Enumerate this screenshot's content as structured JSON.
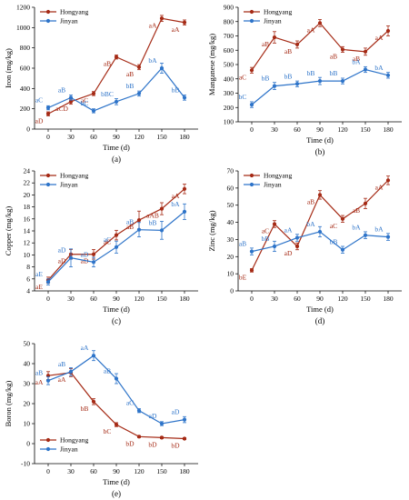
{
  "colors": {
    "Hongyang": "#a52a15",
    "Jinyan": "#2e74c9"
  },
  "chart_data": [
    {
      "panel_label": "(a)",
      "type": "line",
      "x": [
        0,
        30,
        60,
        90,
        120,
        150,
        180
      ],
      "xlabel": "Time (d)",
      "ylabel": "Iron (mg/kg)",
      "ylim": [
        0,
        1200
      ],
      "yticks": [
        0,
        200,
        400,
        600,
        800,
        1000,
        1200
      ],
      "legend": "top-left",
      "series": [
        {
          "name": "Hongyang",
          "values": [
            150,
            270,
            350,
            710,
            610,
            1090,
            1050
          ],
          "errors": [
            20,
            25,
            20,
            20,
            25,
            30,
            25
          ],
          "labels": [
            "aD",
            "aCD",
            "aC",
            "aB",
            "aB",
            "aA",
            "aA"
          ]
        },
        {
          "name": "Jinyan",
          "values": [
            210,
            310,
            180,
            270,
            350,
            600,
            310
          ],
          "errors": [
            20,
            25,
            20,
            30,
            25,
            50,
            25
          ],
          "labels": [
            "aC",
            "aB",
            "bC",
            "bBC",
            "bB",
            "bA",
            "bB"
          ]
        }
      ]
    },
    {
      "panel_label": "(b)",
      "type": "line",
      "x": [
        0,
        30,
        60,
        90,
        120,
        150,
        180
      ],
      "xlabel": "Time (d)",
      "ylabel": "Manganese (mg/kg)",
      "ylim": [
        100,
        900
      ],
      "yticks": [
        100,
        200,
        300,
        400,
        500,
        600,
        700,
        800,
        900
      ],
      "legend": "top-left",
      "series": [
        {
          "name": "Hongyang",
          "values": [
            460,
            690,
            640,
            790,
            605,
            590,
            735
          ],
          "errors": [
            20,
            40,
            25,
            25,
            20,
            25,
            35
          ],
          "labels": [
            "aC",
            "aB",
            "aB",
            "aA",
            "aB",
            "aB",
            "aA"
          ]
        },
        {
          "name": "Jinyan",
          "values": [
            220,
            350,
            365,
            385,
            385,
            465,
            425
          ],
          "errors": [
            20,
            25,
            20,
            25,
            20,
            20,
            20
          ],
          "labels": [
            "bC",
            "bB",
            "bB",
            "bB",
            "bB",
            "bA",
            "bA"
          ]
        }
      ]
    },
    {
      "panel_label": "(c)",
      "type": "line",
      "x": [
        0,
        30,
        60,
        90,
        120,
        150,
        180
      ],
      "xlabel": "Time (d)",
      "ylabel": "Copper (mg/kg)",
      "ylim": [
        4,
        24
      ],
      "yticks": [
        4,
        6,
        8,
        10,
        12,
        14,
        16,
        18,
        20,
        22,
        24
      ],
      "legend": "top-left",
      "series": [
        {
          "name": "Hongyang",
          "values": [
            5.8,
            10.1,
            10.1,
            13.3,
            15.8,
            17.7,
            21.0
          ],
          "errors": [
            0.5,
            0.8,
            0.8,
            0.8,
            1.5,
            1.0,
            0.8
          ],
          "labels": [
            "aE",
            "aD",
            "aD",
            "aC",
            "aB",
            "aAB",
            "aA"
          ]
        },
        {
          "name": "Jinyan",
          "values": [
            5.5,
            9.5,
            8.8,
            11.3,
            14.2,
            14.1,
            17.2
          ],
          "errors": [
            0.5,
            1.5,
            0.8,
            1.0,
            1.2,
            1.5,
            1.3
          ],
          "labels": [
            "aE",
            "aD",
            "aD",
            "aC",
            "aB",
            "bB",
            "bA"
          ]
        }
      ]
    },
    {
      "panel_label": "(d)",
      "type": "line",
      "x": [
        0,
        30,
        60,
        90,
        120,
        150,
        180
      ],
      "xlabel": "Time (d)",
      "ylabel": "Zinc (mg/kg)",
      "ylim": [
        0,
        70
      ],
      "yticks": [
        0,
        10,
        20,
        30,
        40,
        50,
        60,
        70
      ],
      "legend": "top-left",
      "series": [
        {
          "name": "Hongyang",
          "values": [
            12,
            39,
            26,
            56,
            42,
            51,
            64.5
          ],
          "errors": [
            1,
            2,
            2,
            2.5,
            2,
            3,
            2.5
          ],
          "labels": [
            "bE",
            "aC",
            "aD",
            "aB",
            "aC",
            "aB",
            "aA"
          ]
        },
        {
          "name": "Jinyan",
          "values": [
            23,
            26,
            31,
            34.5,
            24,
            32.5,
            31.5
          ],
          "errors": [
            2,
            3,
            2,
            3,
            2,
            2,
            2
          ],
          "labels": [
            "aB",
            "bB",
            "aA",
            "bA",
            "bB",
            "bA",
            "bA"
          ]
        }
      ]
    },
    {
      "panel_label": "(e)",
      "type": "line",
      "x": [
        0,
        30,
        60,
        90,
        120,
        150,
        180
      ],
      "xlabel": "Time (d)",
      "ylabel": "Boron (mg/kg)",
      "ylim": [
        -10,
        50
      ],
      "yticks": [
        -10,
        0,
        10,
        20,
        30,
        40,
        50
      ],
      "legend": "bottom-left",
      "series": [
        {
          "name": "Hongyang",
          "values": [
            34,
            35.5,
            21,
            9.5,
            3.5,
            3,
            2.5
          ],
          "errors": [
            2,
            2,
            1.5,
            1,
            0.5,
            0.5,
            0.5
          ],
          "labels": [
            "aA",
            "aA",
            "bB",
            "bC",
            "bD",
            "bD",
            "bD"
          ]
        },
        {
          "name": "Jinyan",
          "values": [
            31.5,
            36,
            44,
            32.5,
            16.5,
            10,
            12
          ],
          "errors": [
            2,
            2,
            2.5,
            2.5,
            1,
            1,
            1.5
          ],
          "labels": [
            "aB",
            "aB",
            "aA",
            "aB",
            "aC",
            "aD",
            "aD"
          ]
        }
      ]
    }
  ]
}
